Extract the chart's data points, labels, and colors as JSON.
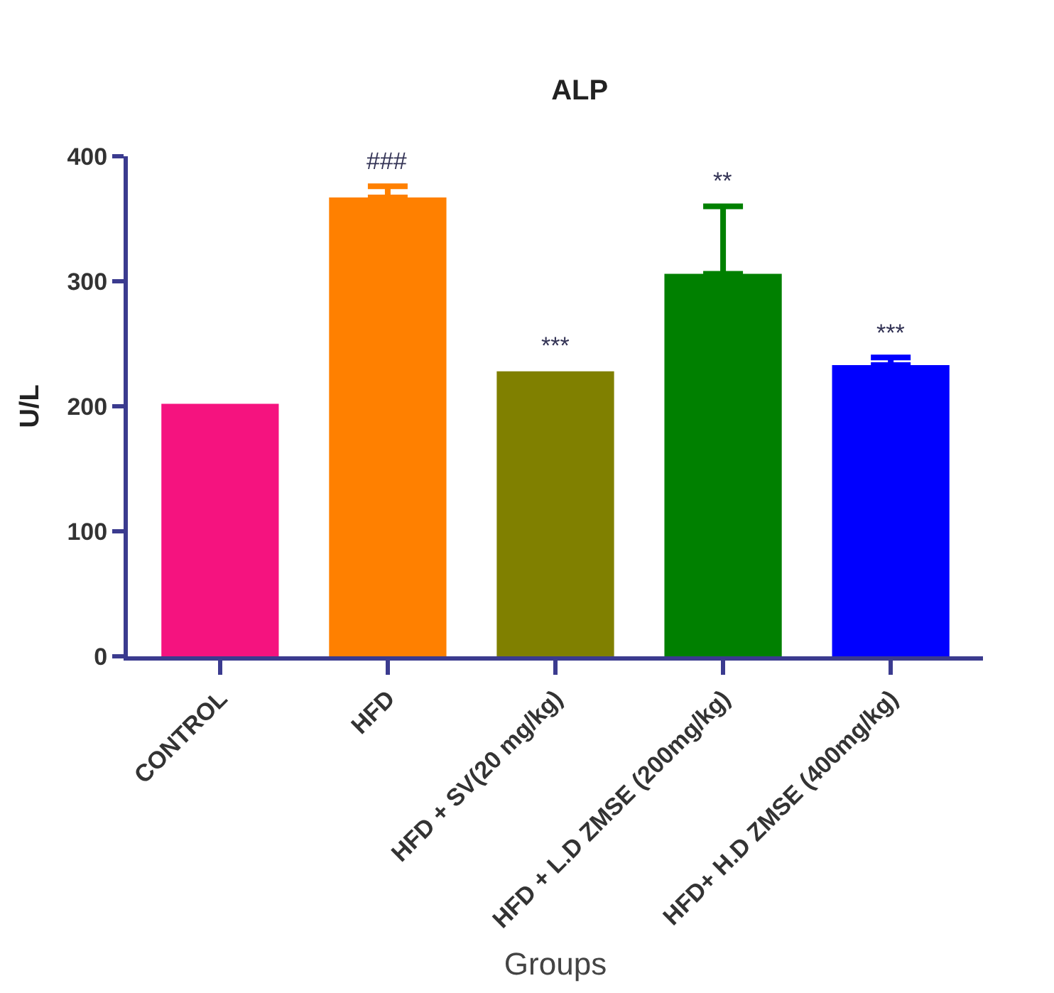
{
  "chart_data": {
    "type": "bar",
    "title": "ALP",
    "xlabel": "Groups",
    "ylabel": "U/L",
    "categories": [
      "CONTROL",
      "HFD",
      "HFD + SV(20 mg/kg)",
      "HFD + L.D ZMSE (200mg/kg)",
      "HFD+ H.D ZMSE (400mg/kg)"
    ],
    "values": [
      202,
      367,
      228,
      306,
      233
    ],
    "errors": [
      null,
      9,
      null,
      54,
      6
    ],
    "colors": [
      "#f5137f",
      "#ff8000",
      "#808000",
      "#008000",
      "#0000ff"
    ],
    "ylim": [
      0,
      400
    ],
    "yticks": [
      0,
      100,
      200,
      300,
      400
    ],
    "annotations": [
      {
        "text": "###",
        "x": "HFD",
        "y": 376
      },
      {
        "text": "***",
        "x": "HFD + SV(20 mg/kg)",
        "y": 228
      },
      {
        "text": "**",
        "x": "HFD + L.D ZMSE (200mg/kg)",
        "y": 360
      },
      {
        "text": "***",
        "x": "HFD+ H.D ZMSE (400mg/kg)",
        "y": 239
      }
    ]
  }
}
